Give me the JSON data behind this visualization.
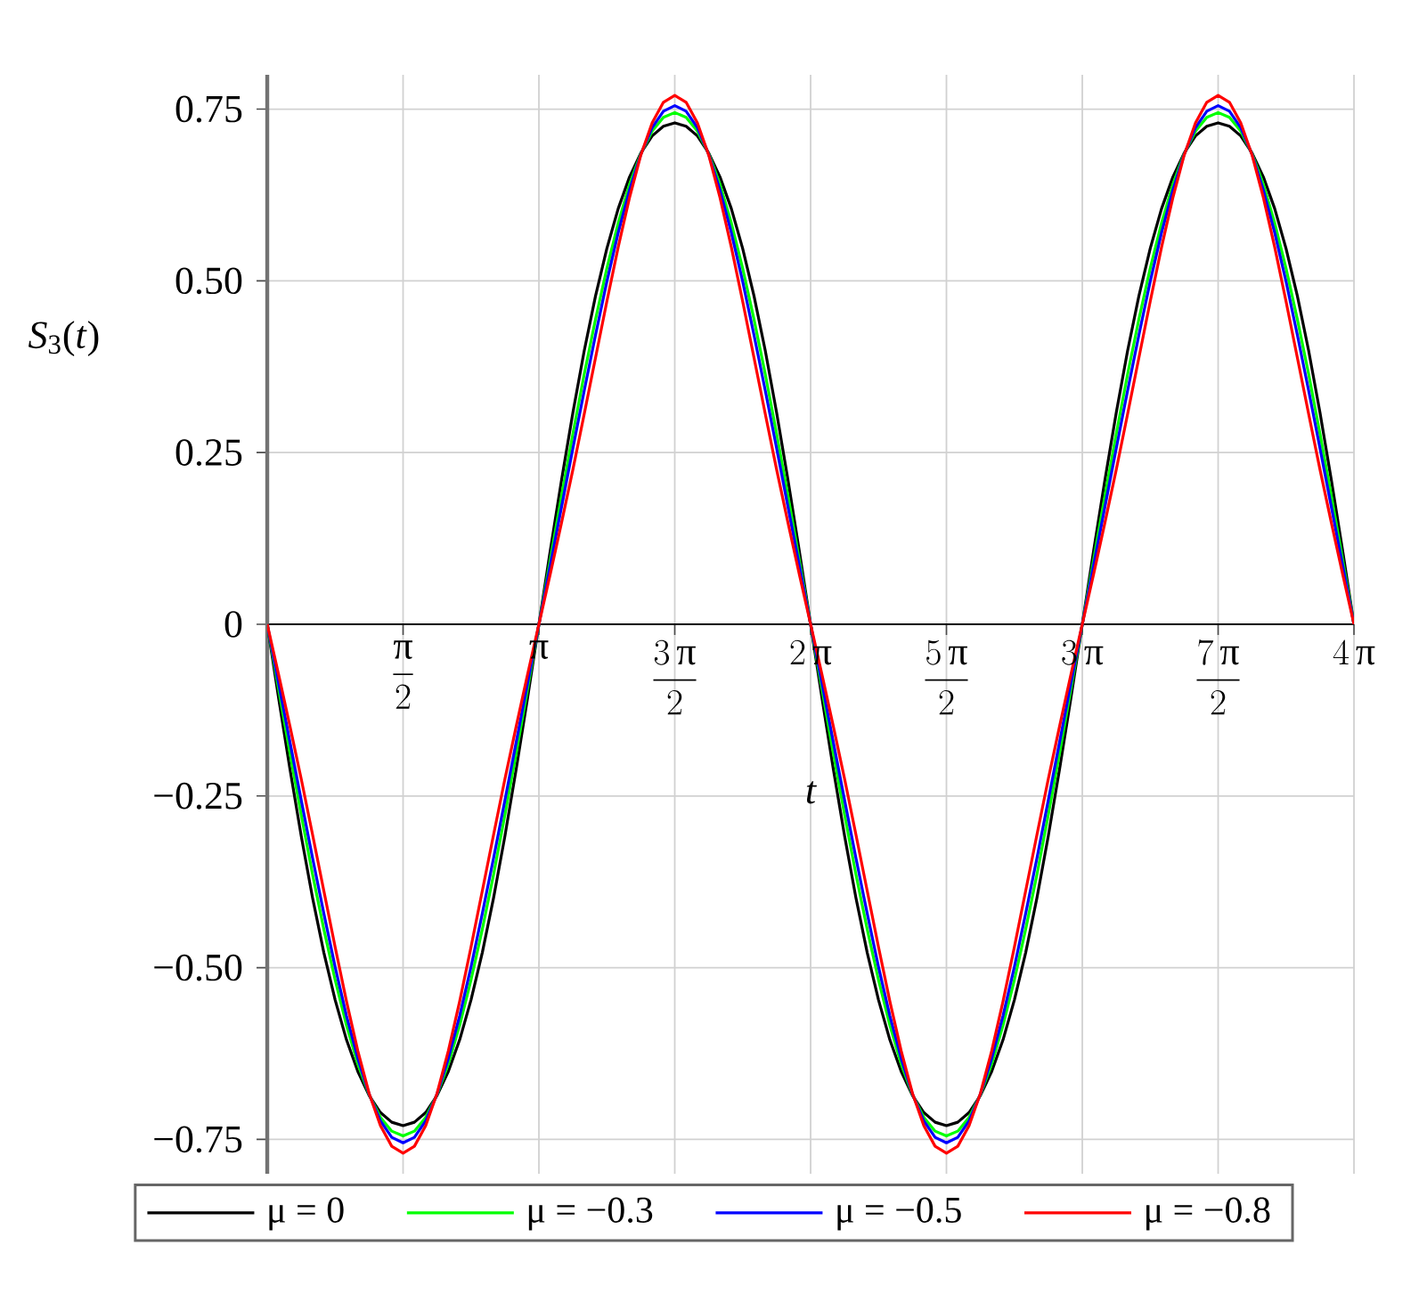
{
  "chart_data": {
    "type": "line",
    "xlabel": "t",
    "ylabel": "*S*$_{3}$(*t*)",
    "x": [
      0,
      0.0417,
      0.0833,
      0.125,
      0.1667,
      0.2083,
      0.25,
      0.2917,
      0.3333,
      0.375,
      0.4167,
      0.4583,
      0.5,
      0.5417,
      0.5833,
      0.625,
      0.6667,
      0.7083,
      0.75,
      0.7917,
      0.8333,
      0.875,
      0.9167,
      0.9583,
      1,
      1.0417,
      1.0833,
      1.125,
      1.1667,
      1.2083,
      1.25,
      1.2917,
      1.3333,
      1.375,
      1.4167,
      1.4583,
      1.5,
      1.5417,
      1.5833,
      1.625,
      1.6667,
      1.7083,
      1.75,
      1.7917,
      1.8333,
      1.875,
      1.9167,
      1.9583,
      2,
      2.0417,
      2.0833,
      2.125,
      2.1667,
      2.2083,
      2.25,
      2.2917,
      2.3333,
      2.375,
      2.4167,
      2.4583,
      2.5,
      2.5417,
      2.5833,
      2.625,
      2.6667,
      2.7083,
      2.75,
      2.7917,
      2.8333,
      2.875,
      2.9167,
      2.9583,
      3,
      3.0417,
      3.0833,
      3.125,
      3.1667,
      3.2083,
      3.25,
      3.2917,
      3.3333,
      3.375,
      3.4167,
      3.4583,
      3.5,
      3.5417,
      3.5833,
      3.625,
      3.6667,
      3.7083,
      3.75,
      3.7917,
      3.8333,
      3.875,
      3.9167,
      3.9583,
      4
    ],
    "series": [
      {
        "name": "μ = 0",
        "color": "#000000",
        "values": [
          0,
          -0.107,
          -0.21,
          -0.308,
          -0.398,
          -0.478,
          -0.547,
          -0.605,
          -0.651,
          -0.686,
          -0.711,
          -0.725,
          -0.73,
          -0.725,
          -0.711,
          -0.686,
          -0.651,
          -0.605,
          -0.547,
          -0.478,
          -0.398,
          -0.308,
          -0.21,
          -0.107,
          0,
          0.107,
          0.21,
          0.308,
          0.398,
          0.478,
          0.547,
          0.605,
          0.651,
          0.686,
          0.711,
          0.725,
          0.73,
          0.725,
          0.711,
          0.686,
          0.651,
          0.605,
          0.547,
          0.478,
          0.398,
          0.308,
          0.21,
          0.107,
          0,
          -0.107,
          -0.21,
          -0.308,
          -0.398,
          -0.478,
          -0.547,
          -0.605,
          -0.651,
          -0.686,
          -0.711,
          -0.725,
          -0.73,
          -0.725,
          -0.711,
          -0.686,
          -0.651,
          -0.605,
          -0.547,
          -0.478,
          -0.398,
          -0.308,
          -0.21,
          -0.107,
          0,
          0.107,
          0.21,
          0.308,
          0.398,
          0.478,
          0.547,
          0.605,
          0.651,
          0.686,
          0.711,
          0.725,
          0.73,
          0.725,
          0.711,
          0.686,
          0.651,
          0.605,
          0.547,
          0.478,
          0.398,
          0.308,
          0.21,
          0.107,
          0
        ]
      },
      {
        "name": "μ = −0.3",
        "color": "#00ff00",
        "values": [
          0,
          -0.094,
          -0.187,
          -0.277,
          -0.364,
          -0.444,
          -0.518,
          -0.584,
          -0.64,
          -0.685,
          -0.718,
          -0.738,
          -0.745,
          -0.738,
          -0.718,
          -0.685,
          -0.64,
          -0.584,
          -0.518,
          -0.444,
          -0.364,
          -0.277,
          -0.187,
          -0.094,
          0,
          0.094,
          0.187,
          0.277,
          0.364,
          0.444,
          0.518,
          0.584,
          0.64,
          0.685,
          0.718,
          0.738,
          0.745,
          0.738,
          0.718,
          0.685,
          0.64,
          0.584,
          0.518,
          0.444,
          0.364,
          0.277,
          0.187,
          0.094,
          0,
          -0.094,
          -0.187,
          -0.277,
          -0.364,
          -0.444,
          -0.518,
          -0.584,
          -0.64,
          -0.685,
          -0.718,
          -0.738,
          -0.745,
          -0.738,
          -0.718,
          -0.685,
          -0.64,
          -0.584,
          -0.518,
          -0.444,
          -0.364,
          -0.277,
          -0.187,
          -0.094,
          0,
          0.094,
          0.187,
          0.277,
          0.364,
          0.444,
          0.518,
          0.584,
          0.64,
          0.685,
          0.718,
          0.738,
          0.745,
          0.738,
          0.718,
          0.685,
          0.64,
          0.584,
          0.518,
          0.444,
          0.364,
          0.277,
          0.187,
          0.094,
          0
        ]
      },
      {
        "name": "μ = −0.5",
        "color": "#0000ff",
        "values": [
          0,
          -0.086,
          -0.171,
          -0.256,
          -0.34,
          -0.421,
          -0.499,
          -0.57,
          -0.632,
          -0.684,
          -0.723,
          -0.747,
          -0.755,
          -0.747,
          -0.723,
          -0.684,
          -0.632,
          -0.57,
          -0.499,
          -0.421,
          -0.34,
          -0.256,
          -0.171,
          -0.086,
          0,
          0.086,
          0.171,
          0.256,
          0.34,
          0.421,
          0.499,
          0.57,
          0.632,
          0.684,
          0.723,
          0.747,
          0.755,
          0.747,
          0.723,
          0.684,
          0.632,
          0.57,
          0.499,
          0.421,
          0.34,
          0.256,
          0.171,
          0.086,
          0,
          -0.086,
          -0.171,
          -0.256,
          -0.34,
          -0.421,
          -0.499,
          -0.57,
          -0.632,
          -0.684,
          -0.723,
          -0.747,
          -0.755,
          -0.747,
          -0.723,
          -0.684,
          -0.632,
          -0.57,
          -0.499,
          -0.421,
          -0.34,
          -0.256,
          -0.171,
          -0.086,
          0,
          0.086,
          0.171,
          0.256,
          0.34,
          0.421,
          0.499,
          0.57,
          0.632,
          0.684,
          0.723,
          0.747,
          0.755,
          0.747,
          0.723,
          0.684,
          0.632,
          0.57,
          0.499,
          0.421,
          0.34,
          0.256,
          0.171,
          0.086,
          0
        ]
      },
      {
        "name": "μ = −0.8",
        "color": "#ff0000",
        "values": [
          0,
          -0.073,
          -0.148,
          -0.225,
          -0.306,
          -0.388,
          -0.47,
          -0.549,
          -0.621,
          -0.683,
          -0.73,
          -0.76,
          -0.77,
          -0.76,
          -0.73,
          -0.683,
          -0.621,
          -0.549,
          -0.47,
          -0.388,
          -0.306,
          -0.225,
          -0.148,
          -0.073,
          0,
          0.073,
          0.148,
          0.225,
          0.306,
          0.388,
          0.47,
          0.549,
          0.621,
          0.683,
          0.73,
          0.76,
          0.77,
          0.76,
          0.73,
          0.683,
          0.621,
          0.549,
          0.47,
          0.388,
          0.306,
          0.225,
          0.148,
          0.073,
          0,
          -0.073,
          -0.148,
          -0.225,
          -0.306,
          -0.388,
          -0.47,
          -0.549,
          -0.621,
          -0.683,
          -0.73,
          -0.76,
          -0.77,
          -0.76,
          -0.73,
          -0.683,
          -0.621,
          -0.549,
          -0.47,
          -0.388,
          -0.306,
          -0.225,
          -0.148,
          -0.073,
          0,
          0.073,
          0.148,
          0.225,
          0.306,
          0.388,
          0.47,
          0.549,
          0.621,
          0.683,
          0.73,
          0.76,
          0.77,
          0.76,
          0.73,
          0.683,
          0.621,
          0.549,
          0.47,
          0.388,
          0.306,
          0.225,
          0.148,
          0.073,
          0
        ]
      }
    ],
    "xlim": [
      0,
      4
    ],
    "ylim": [
      -0.8,
      0.8
    ],
    "xticks": [
      {
        "value": 0.5,
        "label": "{\\text{π} \\over 2}"
      },
      {
        "value": 1,
        "label": "\\text{π}"
      },
      {
        "value": 1.5,
        "label": "\\dfrac{3\\,\\text{π}}{2}"
      },
      {
        "value": 2,
        "label": "2\\,\\text{π}"
      },
      {
        "value": 2.5,
        "label": "\\dfrac{5\\,\\text{π}}{2}"
      },
      {
        "value": 3,
        "label": "3\\,\\text{π}"
      },
      {
        "value": 3.5,
        "label": "\\dfrac{7\\,\\text{π}}{2}"
      },
      {
        "value": 4,
        "label": "4\\,\\text{π}"
      }
    ],
    "yticks": [
      {
        "value": -0.75,
        "label": "−0.75"
      },
      {
        "value": -0.5,
        "label": "−0.50"
      },
      {
        "value": -0.25,
        "label": "−0.25"
      },
      0,
      0.25,
      {
        "value": 0.5,
        "label": "0.50"
      },
      0.75
    ],
    "grid": true,
    "legend": "bottom",
    "line_style": "solid"
  }
}
